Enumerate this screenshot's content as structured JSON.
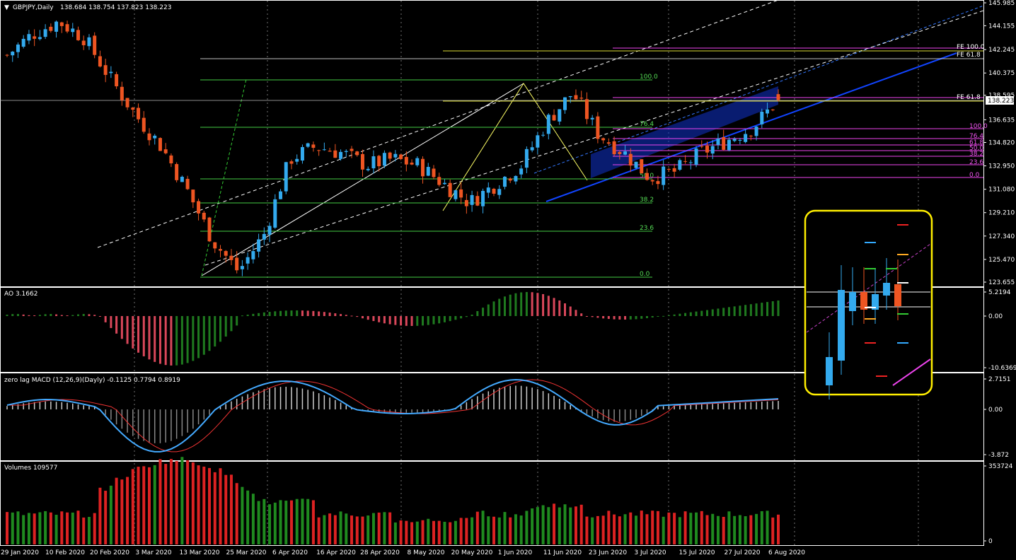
{
  "header": {
    "symbol_label": "GBPJPY,Daily",
    "ohlc_label": "138.684 138.754 137.823 138.223",
    "menu_icon": "triangle-down-icon"
  },
  "price_axis": {
    "ticks": [
      "145.985",
      "144.155",
      "142.245",
      "140.375",
      "138.595",
      "136.635",
      "134.820",
      "132.950",
      "131.080",
      "129.210",
      "127.340",
      "125.470",
      "123.655"
    ],
    "current_price": "138.223"
  },
  "ao_panel": {
    "title": "AO 3.1662",
    "ticks": [
      "5.2194",
      "0.00",
      "-10.6369"
    ]
  },
  "macd_panel": {
    "title": "zero lag MACD (12,26,9)(Dayly) -0.1125 0.7794 0.8919",
    "ticks": [
      "2.7151",
      "0.00",
      "-3.872"
    ]
  },
  "volume_panel": {
    "title": "Volumes 109577",
    "ticks": [
      "353724",
      "0"
    ]
  },
  "date_axis": {
    "labels": [
      "29 Jan 2020",
      "10 Feb 2020",
      "20 Feb 2020",
      "3 Mar 2020",
      "13 Mar 2020",
      "25 Mar 2020",
      "6 Apr 2020",
      "16 Apr 2020",
      "28 Apr 2020",
      "8 May 2020",
      "20 May 2020",
      "1 Jun 2020",
      "11 Jun 2020",
      "23 Jun 2020",
      "3 Jul 2020",
      "15 Jul 2020",
      "27 Jul 2020",
      "6 Aug 2020"
    ]
  },
  "fib_levels_1": [
    "100.0",
    "76.4",
    "50.0",
    "38.2",
    "23.6",
    "0.0"
  ],
  "fib_levels_2": [
    "100.0",
    "76.4",
    "61.8",
    "50.0",
    "38.2",
    "23.6",
    "0.0"
  ],
  "fe_labels": [
    "FE 100.0",
    "FE 61.8",
    "FE 61.8"
  ],
  "colors": {
    "bull": "#33aaee",
    "bear": "#ee5522",
    "ao_up": "#1f7a1f",
    "ao_down": "#d9475a",
    "vol_up": "#1f8a1f",
    "vol_down": "#dd2222",
    "highlight_box": "#ffee00",
    "channel": "#1133cc"
  },
  "chart_data": {
    "type": "candlestick",
    "symbol": "GBPJPY",
    "timeframe": "Daily",
    "ylim": [
      123.655,
      145.985
    ],
    "x_range": [
      "29 Jan 2020",
      "6 Aug 2020"
    ],
    "approx_close_path": [
      141.8,
      143.5,
      144.5,
      143.2,
      140.0,
      137.0,
      134.5,
      131.0,
      127.0,
      124.5,
      127.5,
      133.5,
      134.5,
      134.0,
      133.0,
      133.5,
      133.0,
      131.5,
      130.0,
      131.5,
      133.0,
      136.5,
      138.8,
      135.5,
      134.0,
      132.0,
      132.5,
      134.0,
      135.0,
      136.0,
      138.223
    ],
    "last": {
      "open": 138.684,
      "high": 138.754,
      "low": 137.823,
      "close": 138.223
    }
  }
}
